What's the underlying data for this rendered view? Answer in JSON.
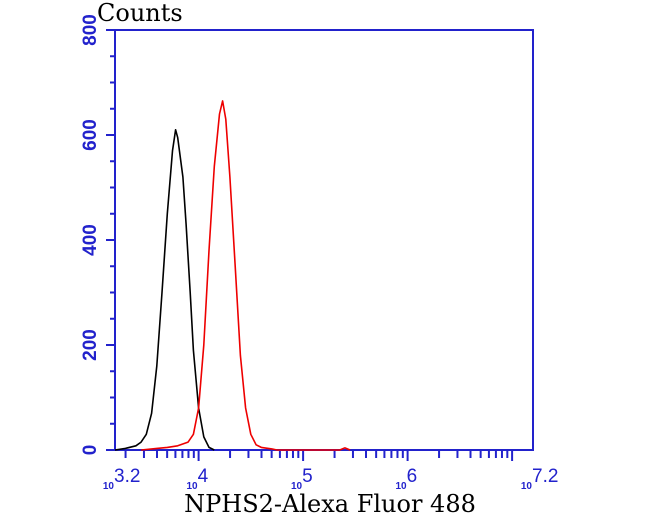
{
  "chart_data": {
    "type": "line",
    "xlabel": "NPHS2-Alexa Fluor 488",
    "ylabel": "Counts",
    "x_scale": "log",
    "xlim_log10": [
      3.2,
      7.2
    ],
    "ylim": [
      0,
      800
    ],
    "y_ticks": [
      "0",
      "200",
      "400",
      "600",
      "800"
    ],
    "x_tick_labels": [
      {
        "base": "10",
        "exp": "3.2"
      },
      {
        "base": "10",
        "exp": "4"
      },
      {
        "base": "10",
        "exp": "5"
      },
      {
        "base": "10",
        "exp": "6"
      },
      {
        "base": "10",
        "exp": "7.2"
      }
    ],
    "x_tick_positions_log10": [
      3.2,
      4,
      5,
      6,
      7.2
    ],
    "axis_color": "#2222cc",
    "series": [
      {
        "color": "#000000",
        "points": [
          [
            3.2,
            0
          ],
          [
            3.3,
            3
          ],
          [
            3.4,
            8
          ],
          [
            3.45,
            15
          ],
          [
            3.5,
            30
          ],
          [
            3.55,
            70
          ],
          [
            3.6,
            160
          ],
          [
            3.65,
            300
          ],
          [
            3.7,
            450
          ],
          [
            3.75,
            570
          ],
          [
            3.78,
            610
          ],
          [
            3.8,
            595
          ],
          [
            3.85,
            520
          ],
          [
            3.88,
            430
          ],
          [
            3.92,
            300
          ],
          [
            3.95,
            190
          ],
          [
            4.0,
            80
          ],
          [
            4.05,
            25
          ],
          [
            4.1,
            5
          ],
          [
            4.15,
            0
          ]
        ]
      },
      {
        "color": "#ee0000",
        "points": [
          [
            3.45,
            0
          ],
          [
            3.6,
            3
          ],
          [
            3.7,
            5
          ],
          [
            3.8,
            8
          ],
          [
            3.9,
            15
          ],
          [
            3.95,
            30
          ],
          [
            4.0,
            80
          ],
          [
            4.05,
            200
          ],
          [
            4.1,
            380
          ],
          [
            4.15,
            540
          ],
          [
            4.2,
            640
          ],
          [
            4.23,
            665
          ],
          [
            4.26,
            630
          ],
          [
            4.3,
            520
          ],
          [
            4.35,
            350
          ],
          [
            4.4,
            180
          ],
          [
            4.45,
            80
          ],
          [
            4.5,
            30
          ],
          [
            4.55,
            10
          ],
          [
            4.6,
            5
          ],
          [
            4.7,
            2
          ],
          [
            4.75,
            0
          ],
          [
            5.35,
            0
          ],
          [
            5.4,
            4
          ],
          [
            5.45,
            0
          ]
        ]
      }
    ]
  }
}
